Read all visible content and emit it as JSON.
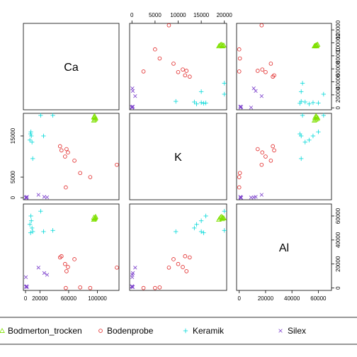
{
  "chart_data": {
    "type": "scatter-matrix",
    "variables": [
      "Ca",
      "K",
      "Al"
    ],
    "axes": {
      "Ca": {
        "range": [
          -3000,
          130000
        ],
        "ticks": [
          0,
          20000,
          60000,
          100000
        ],
        "tick_labels": [
          "0",
          "20000",
          "60000",
          "100000"
        ]
      },
      "K": {
        "range": [
          -500,
          20500
        ],
        "ticks": [
          0,
          5000,
          10000,
          15000,
          20000
        ],
        "tick_labels": [
          "0",
          "5000",
          "10000",
          "15000",
          "20000"
        ]
      },
      "Al": {
        "range": [
          -2000,
          70000
        ],
        "ticks": [
          0,
          20000,
          40000,
          60000
        ],
        "tick_labels": [
          "0",
          "20000",
          "40000",
          "60000"
        ]
      }
    },
    "ca_right_ticks": [
      0,
      20000,
      40000,
      60000,
      80000,
      100000,
      120000
    ],
    "ca_right_tick_labels": [
      "0",
      "20000",
      "40000",
      "60000",
      "80000",
      "100000",
      "120000"
    ],
    "series": [
      {
        "name": "Bodmerton_trocken",
        "marker": "triangle",
        "color": "#7FE000",
        "points": [
          {
            "Ca": 95000,
            "K": 18800,
            "Al": 57000
          },
          {
            "Ca": 96000,
            "K": 19000,
            "Al": 58000
          },
          {
            "Ca": 97000,
            "K": 19200,
            "Al": 59000
          },
          {
            "Ca": 95500,
            "K": 19500,
            "Al": 57500
          },
          {
            "Ca": 96500,
            "K": 19700,
            "Al": 58500
          },
          {
            "Ca": 97500,
            "K": 19400,
            "Al": 59500
          },
          {
            "Ca": 96000,
            "K": 19900,
            "Al": 58200
          },
          {
            "Ca": 95000,
            "K": 19600,
            "Al": 58800
          }
        ]
      },
      {
        "name": "Bodenprobe",
        "marker": "circle",
        "color": "#E02020",
        "points": [
          {
            "Ca": 127000,
            "K": 8000,
            "Al": 17000
          },
          {
            "Ca": 90000,
            "K": 5000,
            "Al": 0
          },
          {
            "Ca": 76000,
            "K": 6000,
            "Al": 500
          },
          {
            "Ca": 50000,
            "K": 11500,
            "Al": 26500
          },
          {
            "Ca": 48000,
            "K": 12500,
            "Al": 25500
          },
          {
            "Ca": 57000,
            "K": 11800,
            "Al": 14000
          },
          {
            "Ca": 56000,
            "K": 2500,
            "Al": 0
          },
          {
            "Ca": 59000,
            "K": 11000,
            "Al": 17500
          },
          {
            "Ca": 68000,
            "K": 9000,
            "Al": 24000
          },
          {
            "Ca": 55000,
            "K": 10000,
            "Al": 20000
          }
        ]
      },
      {
        "name": "Keramik",
        "marker": "plus",
        "color": "#00D8D8",
        "points": [
          {
            "Ca": 21000,
            "K": 20000,
            "Al": 64000
          },
          {
            "Ca": 7000,
            "K": 15500,
            "Al": 46000
          },
          {
            "Ca": 7500,
            "K": 16000,
            "Al": 60000
          },
          {
            "Ca": 6000,
            "K": 14000,
            "Al": 53000
          },
          {
            "Ca": 8000,
            "K": 15000,
            "Al": 56000
          },
          {
            "Ca": 10000,
            "K": 9500,
            "Al": 47000
          },
          {
            "Ca": 25000,
            "K": 15000,
            "Al": 47000
          },
          {
            "Ca": 38000,
            "K": 20000,
            "Al": 48000
          },
          {
            "Ca": 9000,
            "K": 13500,
            "Al": 50000
          }
        ]
      },
      {
        "name": "Silex",
        "marker": "cross",
        "color": "#7B3FCC",
        "points": [
          {
            "Ca": 500,
            "K": 0,
            "Al": 1000
          },
          {
            "Ca": 1000,
            "K": 100,
            "Al": 1200
          },
          {
            "Ca": 1500,
            "K": 0,
            "Al": 1500
          },
          {
            "Ca": 2000,
            "K": 200,
            "Al": 800
          },
          {
            "Ca": 18000,
            "K": 700,
            "Al": 17000
          },
          {
            "Ca": 26000,
            "K": 200,
            "Al": 12500
          },
          {
            "Ca": 30000,
            "K": 100,
            "Al": 11000
          },
          {
            "Ca": 500,
            "K": 50,
            "Al": 9000
          }
        ]
      }
    ],
    "legend": {
      "position": "bottom",
      "entries": [
        "Bodmerton_trocken",
        "Bodenprobe",
        "Keramik",
        "Silex"
      ]
    }
  }
}
